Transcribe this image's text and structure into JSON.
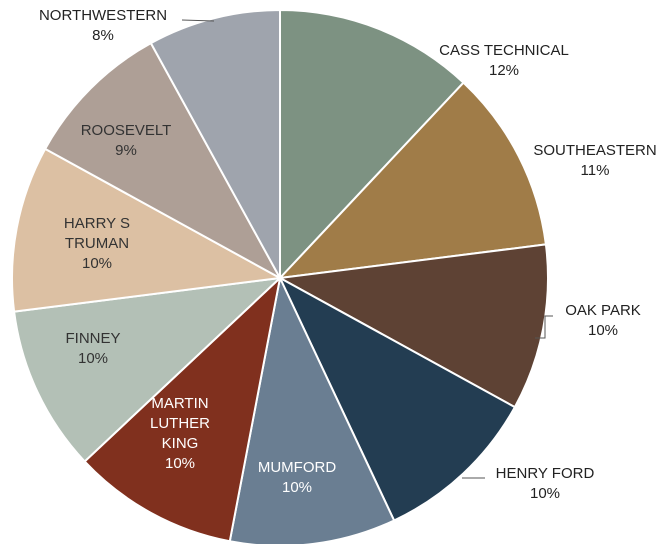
{
  "chart_data": {
    "type": "pie",
    "title": "",
    "legend": "none",
    "slices": [
      {
        "label": "CASS TECHNICAL",
        "value": 12,
        "pct_label": "12%",
        "color": "#7d9282"
      },
      {
        "label": "SOUTHEASTERN",
        "value": 11,
        "pct_label": "11%",
        "color": "#a07c48"
      },
      {
        "label": "OAK PARK",
        "value": 10,
        "pct_label": "10%",
        "color": "#5e4234"
      },
      {
        "label": "HENRY FORD",
        "value": 10,
        "pct_label": "10%",
        "color": "#233d52"
      },
      {
        "label": "MUMFORD",
        "value": 10,
        "pct_label": "10%",
        "color": "#6a7e92"
      },
      {
        "label": "MARTIN LUTHER KING",
        "value": 10,
        "pct_label": "10%",
        "color": "#80301e"
      },
      {
        "label": "FINNEY",
        "value": 10,
        "pct_label": "10%",
        "color": "#b3c0b6"
      },
      {
        "label": "HARRY S TRUMAN",
        "value": 10,
        "pct_label": "10%",
        "color": "#dcc0a3"
      },
      {
        "label": "ROOSEVELT",
        "value": 9,
        "pct_label": "9%",
        "color": "#ae9f96"
      },
      {
        "label": "NORTHWESTERN",
        "value": 8,
        "pct_label": "8%",
        "color": "#9fa4ad"
      }
    ]
  }
}
